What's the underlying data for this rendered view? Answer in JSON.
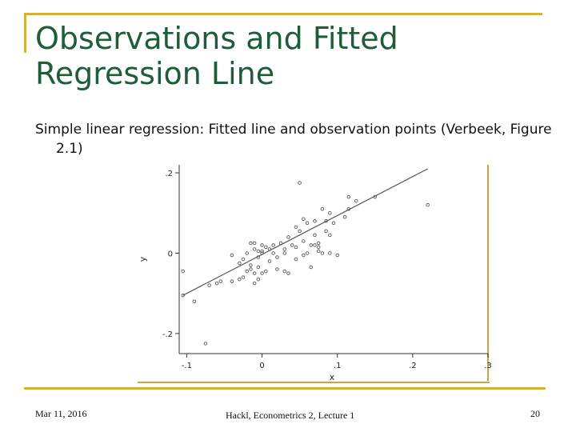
{
  "slide": {
    "title": "Observations and Fitted Regression Line",
    "subtitle": "Simple linear regression: Fitted line and observation points (Verbeek, Figure 2.1)"
  },
  "footer": {
    "date": "Mar 11, 2016",
    "center": "Hackl, Econometrics 2, Lecture 1",
    "page": "20"
  },
  "colors": {
    "accent": "#d4b23a",
    "title": "#1f5c3a",
    "line": "#555555",
    "point": "#555555"
  },
  "chart_data": {
    "type": "scatter",
    "xlabel": "x",
    "ylabel": "y",
    "xlim": [
      -0.11,
      0.3
    ],
    "ylim": [
      -0.25,
      0.22
    ],
    "xticks": [
      -0.1,
      0,
      0.1,
      0.2,
      0.3
    ],
    "xtick_labels": [
      "-.1",
      "0",
      ".1",
      ".2",
      ".3"
    ],
    "yticks": [
      -0.2,
      0,
      0.2
    ],
    "ytick_labels": [
      "-.2",
      "0",
      ".2"
    ],
    "grid": false,
    "fitted_line": {
      "x": [
        -0.105,
        0.22
      ],
      "y": [
        -0.105,
        0.21
      ]
    },
    "points": [
      {
        "x": -0.105,
        "y": -0.045
      },
      {
        "x": -0.105,
        "y": -0.105
      },
      {
        "x": -0.09,
        "y": -0.12
      },
      {
        "x": -0.07,
        "y": -0.08
      },
      {
        "x": -0.075,
        "y": -0.225
      },
      {
        "x": -0.06,
        "y": -0.075
      },
      {
        "x": -0.055,
        "y": -0.07
      },
      {
        "x": -0.04,
        "y": -0.07
      },
      {
        "x": -0.03,
        "y": -0.065
      },
      {
        "x": -0.025,
        "y": -0.06
      },
      {
        "x": -0.02,
        "y": -0.045
      },
      {
        "x": -0.04,
        "y": -0.005
      },
      {
        "x": -0.03,
        "y": -0.025
      },
      {
        "x": -0.025,
        "y": -0.015
      },
      {
        "x": -0.02,
        "y": 0.0
      },
      {
        "x": -0.015,
        "y": -0.03
      },
      {
        "x": -0.01,
        "y": -0.05
      },
      {
        "x": -0.01,
        "y": -0.075
      },
      {
        "x": -0.005,
        "y": -0.065
      },
      {
        "x": -0.015,
        "y": -0.04
      },
      {
        "x": -0.005,
        "y": -0.01
      },
      {
        "x": 0.0,
        "y": 0.005
      },
      {
        "x": 0.0,
        "y": -0.05
      },
      {
        "x": 0.005,
        "y": -0.045
      },
      {
        "x": -0.01,
        "y": 0.01
      },
      {
        "x": -0.005,
        "y": 0.005
      },
      {
        "x": -0.015,
        "y": 0.025
      },
      {
        "x": -0.01,
        "y": 0.025
      },
      {
        "x": 0.0,
        "y": 0.02
      },
      {
        "x": 0.005,
        "y": 0.015
      },
      {
        "x": 0.0,
        "y": 0.0
      },
      {
        "x": 0.01,
        "y": 0.01
      },
      {
        "x": 0.015,
        "y": 0.02
      },
      {
        "x": 0.02,
        "y": -0.01
      },
      {
        "x": 0.025,
        "y": 0.025
      },
      {
        "x": 0.02,
        "y": -0.04
      },
      {
        "x": 0.03,
        "y": -0.045
      },
      {
        "x": 0.03,
        "y": 0.0
      },
      {
        "x": 0.03,
        "y": 0.01
      },
      {
        "x": 0.035,
        "y": 0.04
      },
      {
        "x": 0.04,
        "y": 0.02
      },
      {
        "x": 0.045,
        "y": 0.015
      },
      {
        "x": 0.045,
        "y": -0.015
      },
      {
        "x": 0.05,
        "y": 0.055
      },
      {
        "x": 0.055,
        "y": 0.03
      },
      {
        "x": 0.055,
        "y": -0.005
      },
      {
        "x": 0.06,
        "y": 0.0
      },
      {
        "x": 0.065,
        "y": 0.02
      },
      {
        "x": 0.065,
        "y": -0.035
      },
      {
        "x": 0.05,
        "y": 0.175
      },
      {
        "x": 0.055,
        "y": 0.085
      },
      {
        "x": 0.045,
        "y": 0.065
      },
      {
        "x": 0.06,
        "y": 0.075
      },
      {
        "x": 0.07,
        "y": 0.02
      },
      {
        "x": 0.07,
        "y": 0.045
      },
      {
        "x": 0.075,
        "y": 0.025
      },
      {
        "x": 0.075,
        "y": 0.015
      },
      {
        "x": 0.08,
        "y": 0.0
      },
      {
        "x": 0.085,
        "y": 0.055
      },
      {
        "x": 0.085,
        "y": 0.08
      },
      {
        "x": 0.09,
        "y": 0.1
      },
      {
        "x": 0.095,
        "y": 0.075
      },
      {
        "x": 0.09,
        "y": 0.045
      },
      {
        "x": 0.09,
        "y": 0.0
      },
      {
        "x": 0.1,
        "y": -0.005
      },
      {
        "x": 0.075,
        "y": 0.005
      },
      {
        "x": 0.11,
        "y": 0.09
      },
      {
        "x": 0.115,
        "y": 0.11
      },
      {
        "x": 0.115,
        "y": 0.14
      },
      {
        "x": 0.125,
        "y": 0.13
      },
      {
        "x": 0.08,
        "y": 0.11
      },
      {
        "x": 0.07,
        "y": 0.08
      },
      {
        "x": 0.15,
        "y": 0.14
      },
      {
        "x": 0.22,
        "y": 0.12
      },
      {
        "x": 0.035,
        "y": -0.05
      },
      {
        "x": -0.005,
        "y": -0.035
      },
      {
        "x": 0.01,
        "y": -0.02
      },
      {
        "x": 0.015,
        "y": 0.0
      }
    ]
  }
}
